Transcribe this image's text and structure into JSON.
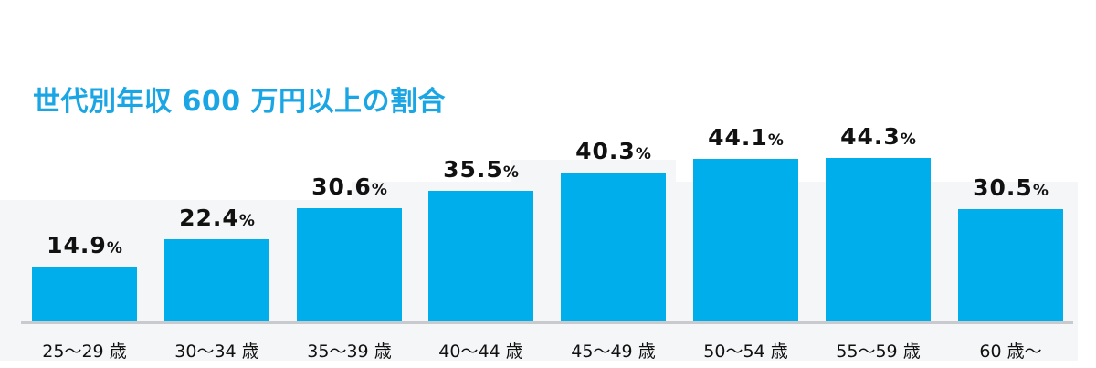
{
  "title": "世代別年収 600 万円以上の割合",
  "colors": {
    "bar": "#00aeeb",
    "title": "#1aa6e4",
    "panel": "#f5f6f8"
  },
  "percent_sign": "%",
  "bars": [
    {
      "label": "25〜29 歳",
      "value": "14.9"
    },
    {
      "label": "30〜34 歳",
      "value": "22.4"
    },
    {
      "label": "35〜39 歳",
      "value": "30.6"
    },
    {
      "label": "40〜44 歳",
      "value": "35.5"
    },
    {
      "label": "45〜49 歳",
      "value": "40.3"
    },
    {
      "label": "50〜54 歳",
      "value": "44.1"
    },
    {
      "label": "55〜59 歳",
      "value": "44.3"
    },
    {
      "label": "60 歳〜",
      "value": "30.5"
    }
  ],
  "chart_data": {
    "type": "bar",
    "title": "世代別年収 600 万円以上の割合",
    "categories": [
      "25〜29 歳",
      "30〜34 歳",
      "35〜39 歳",
      "40〜44 歳",
      "45〜49 歳",
      "50〜54 歳",
      "55〜59 歳",
      "60 歳〜"
    ],
    "values": [
      14.9,
      22.4,
      30.6,
      35.5,
      40.3,
      44.1,
      44.3,
      30.5
    ],
    "unit": "%",
    "xlabel": "",
    "ylabel": "",
    "ylim": [
      0,
      50
    ],
    "grid": false,
    "legend": null,
    "data_labels": true
  }
}
